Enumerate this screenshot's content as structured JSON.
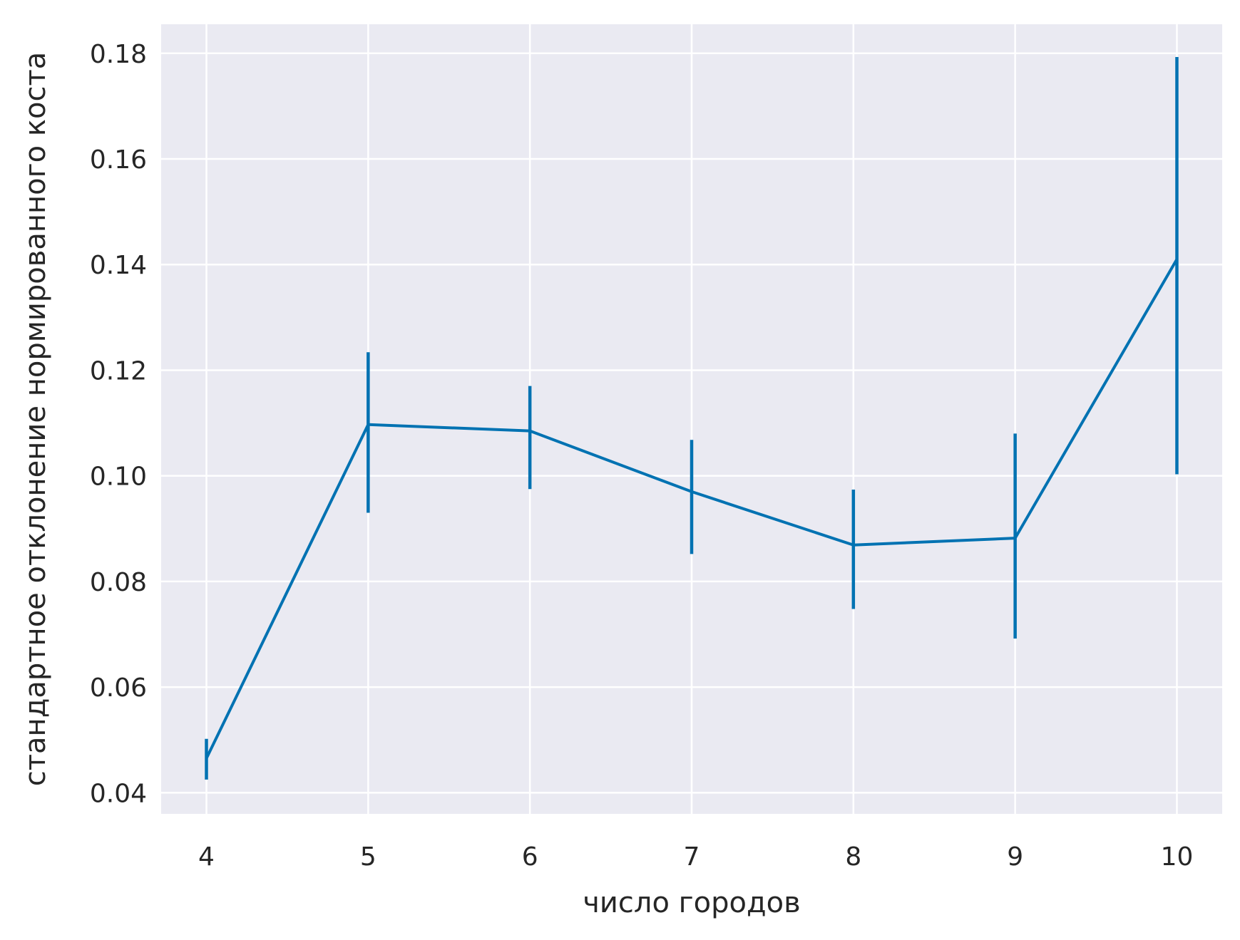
{
  "chart_data": {
    "type": "line",
    "title": "",
    "xlabel": "число городов",
    "ylabel": "стандартное отклонение нормированного коста",
    "x": [
      4,
      5,
      6,
      7,
      8,
      9,
      10
    ],
    "series": [
      {
        "values": [
          0.0465,
          0.1097,
          0.1085,
          0.097,
          0.0869,
          0.0882,
          0.141
        ],
        "error_low": [
          0.0425,
          0.093,
          0.0975,
          0.0852,
          0.0748,
          0.0692,
          0.1003
        ],
        "error_high": [
          0.0502,
          0.1234,
          0.117,
          0.1068,
          0.0974,
          0.108,
          0.1793
        ],
        "color": "#0072b2"
      }
    ],
    "xticks": [
      "4",
      "5",
      "6",
      "7",
      "8",
      "9",
      "10"
    ],
    "yticks": [
      "0.04",
      "0.06",
      "0.08",
      "0.10",
      "0.12",
      "0.14",
      "0.16",
      "0.18"
    ],
    "xlim": [
      3.72,
      10.28
    ],
    "ylim": [
      0.036,
      0.1855
    ],
    "grid": true,
    "style": {
      "background": "#eaeaf2",
      "grid_color": "#ffffff",
      "text_color": "#262626"
    }
  }
}
